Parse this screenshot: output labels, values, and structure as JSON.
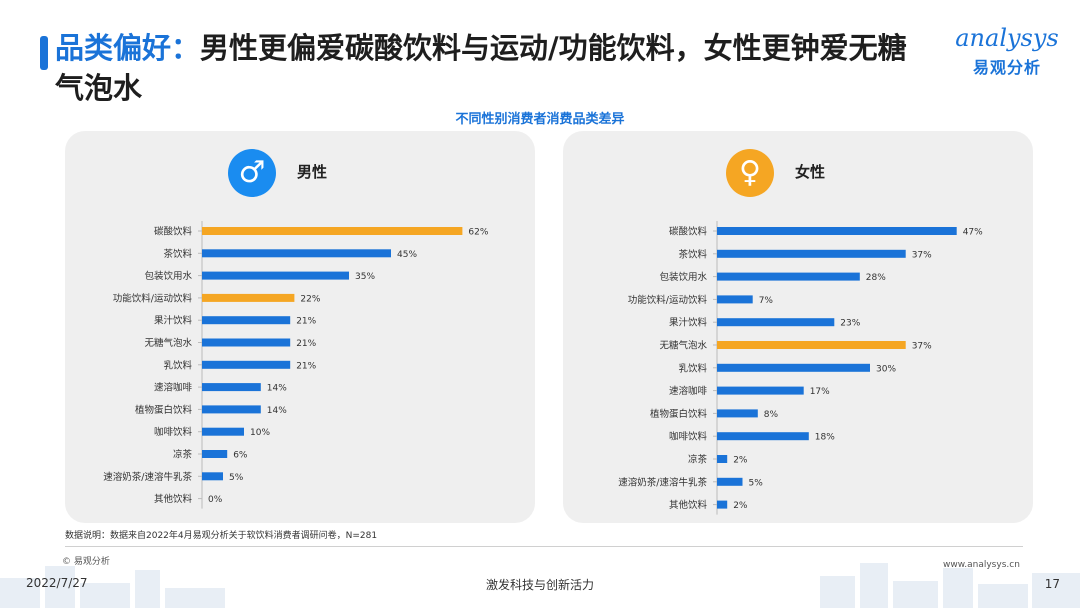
{
  "title": {
    "highlight": "品类偏好：",
    "text": "男性更偏爱碳酸饮料与运动/功能饮料，女性更钟爱无糖气泡水"
  },
  "logo": {
    "en": "analysys",
    "cn": "易观分析"
  },
  "subtitle": "不同性别消费者消费品类差异",
  "colors": {
    "primary": "#1a73d8",
    "bar_blue": "#1a73d8",
    "bar_highlight": "#f5a623"
  },
  "chart_data": [
    {
      "type": "bar",
      "orientation": "horizontal",
      "title": "男性",
      "icon": "male-icon",
      "categories": [
        "碳酸饮料",
        "茶饮料",
        "包装饮用水",
        "功能饮料/运动饮料",
        "果汁饮料",
        "无糖气泡水",
        "乳饮料",
        "速溶咖啡",
        "植物蛋白饮料",
        "咖啡饮料",
        "凉茶",
        "速溶奶茶/速溶牛乳茶",
        "其他饮料"
      ],
      "values": [
        62,
        45,
        35,
        22,
        21,
        21,
        21,
        14,
        14,
        10,
        6,
        5,
        0
      ],
      "labels": [
        "62%",
        "45%",
        "35%",
        "22%",
        "21%",
        "21%",
        "21%",
        "14%",
        "14%",
        "10%",
        "6%",
        "5%",
        "0%"
      ],
      "highlighted": [
        "碳酸饮料",
        "功能饮料/运动饮料"
      ],
      "unit": "%"
    },
    {
      "type": "bar",
      "orientation": "horizontal",
      "title": "女性",
      "icon": "female-icon",
      "categories": [
        "碳酸饮料",
        "茶饮料",
        "包装饮用水",
        "功能饮料/运动饮料",
        "果汁饮料",
        "无糖气泡水",
        "乳饮料",
        "速溶咖啡",
        "植物蛋白饮料",
        "咖啡饮料",
        "凉茶",
        "速溶奶茶/速溶牛乳茶",
        "其他饮料"
      ],
      "values": [
        47,
        37,
        28,
        7,
        23,
        37,
        30,
        17,
        8,
        18,
        2,
        5,
        2
      ],
      "labels": [
        "47%",
        "37%",
        "28%",
        "7%",
        "23%",
        "37%",
        "30%",
        "17%",
        "8%",
        "18%",
        "2%",
        "5%",
        "2%"
      ],
      "highlighted": [
        "无糖气泡水"
      ],
      "unit": "%"
    }
  ],
  "note": "数据说明：数据来自2022年4月易观分析关于软饮料消费者调研问卷，N=281",
  "copyright": "© 易观分析",
  "website": "www.analysys.cn",
  "footer": {
    "date": "2022/7/27",
    "slogan": "激发科技与创新活力",
    "page": "17"
  }
}
